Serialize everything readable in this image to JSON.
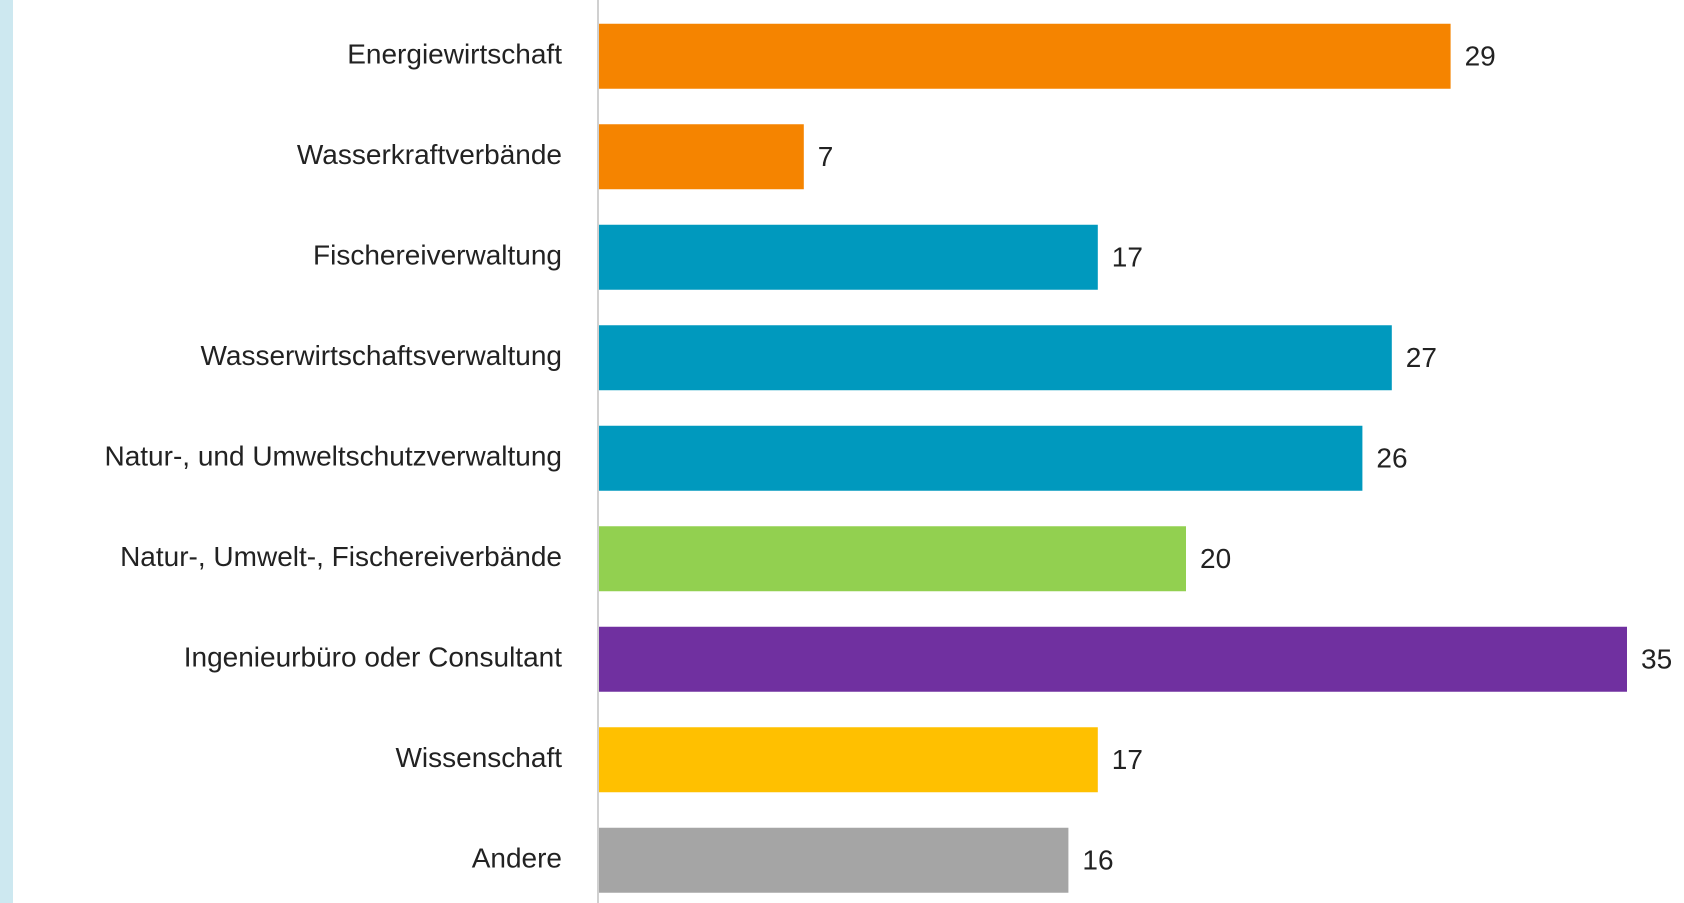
{
  "chart_data": {
    "type": "barh",
    "categories": [
      "Energiewirtschaft",
      "Wasserkraftverbände",
      "Fischereiverwaltung",
      "Wasserwirtschaftsverwaltung",
      "Natur-, und Umweltschutzverwaltung",
      "Natur-, Umwelt-, Fischereiverbände",
      "Ingenieurbüro oder Consultant",
      "Wissenschaft",
      "Andere"
    ],
    "values": [
      29,
      7,
      17,
      27,
      26,
      20,
      35,
      17,
      16
    ],
    "colors": [
      "#f58400",
      "#f58400",
      "#0099be",
      "#0099be",
      "#0099be",
      "#92d050",
      "#7030a0",
      "#ffc000",
      "#a5a5a5"
    ]
  }
}
